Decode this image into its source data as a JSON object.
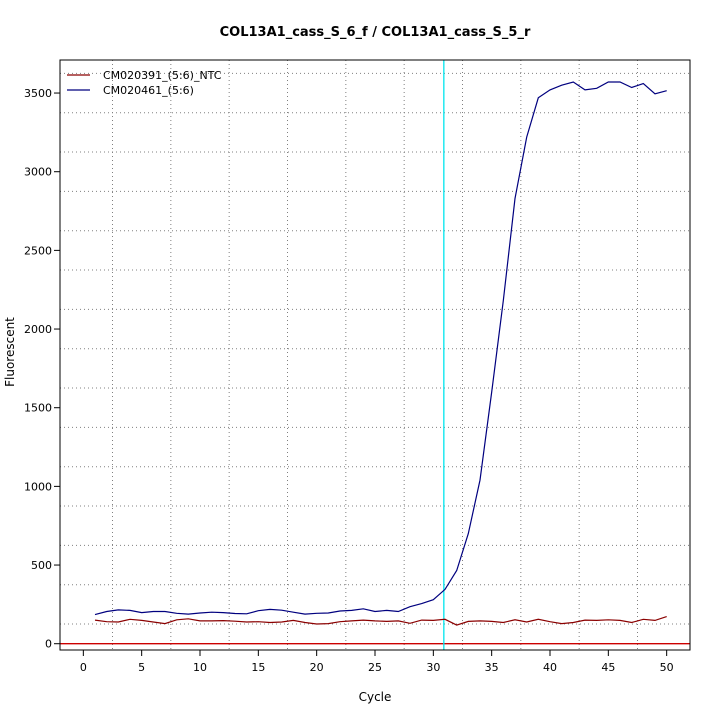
{
  "chart_data": {
    "type": "line",
    "title": "COL13A1_cass_S_6_f / COL13A1_cass_S_5_r",
    "xlabel": "Cycle",
    "ylabel": "Fluorescent",
    "xlim": [
      -2,
      52
    ],
    "ylim": [
      -40,
      3710
    ],
    "x_ticks": [
      "0",
      "5",
      "10",
      "15",
      "20",
      "25",
      "30",
      "35",
      "40",
      "45",
      "50"
    ],
    "y_ticks": [
      "0",
      "500",
      "1000",
      "1500",
      "2000",
      "2500",
      "3000",
      "3500"
    ],
    "grid": true,
    "legend_position": "top-left",
    "threshold_cycle": 30.9,
    "threshold_color": "#00e5ee",
    "baseline_color": "#cc0000",
    "series": [
      {
        "name": "CM020391_(5:6)_NTC",
        "color": "#8b0000",
        "x": [
          1,
          2,
          3,
          4,
          5,
          6,
          7,
          8,
          9,
          10,
          11,
          12,
          13,
          14,
          15,
          16,
          17,
          18,
          19,
          20,
          21,
          22,
          23,
          24,
          25,
          26,
          27,
          28,
          29,
          30,
          31,
          32,
          33,
          34,
          35,
          36,
          37,
          38,
          39,
          40,
          41,
          42,
          43,
          44,
          45,
          46,
          47,
          48,
          49,
          50
        ],
        "values": [
          150,
          140,
          138,
          155,
          148,
          138,
          128,
          152,
          158,
          145,
          145,
          147,
          143,
          138,
          140,
          135,
          138,
          148,
          135,
          125,
          128,
          140,
          145,
          150,
          145,
          142,
          145,
          130,
          150,
          148,
          155,
          118,
          142,
          145,
          142,
          135,
          152,
          138,
          155,
          140,
          128,
          135,
          150,
          148,
          152,
          148,
          135,
          155,
          148,
          172
        ]
      },
      {
        "name": "CM020461_(5:6)",
        "color": "#00007f",
        "x": [
          1,
          2,
          3,
          4,
          5,
          6,
          7,
          8,
          9,
          10,
          11,
          12,
          13,
          14,
          15,
          16,
          17,
          18,
          19,
          20,
          21,
          22,
          23,
          24,
          25,
          26,
          27,
          28,
          29,
          30,
          31,
          32,
          33,
          34,
          35,
          36,
          37,
          38,
          39,
          40,
          41,
          42,
          43,
          44,
          45,
          46,
          47,
          48,
          49,
          50
        ],
        "values": [
          185,
          205,
          215,
          212,
          198,
          205,
          205,
          193,
          188,
          195,
          200,
          198,
          192,
          190,
          210,
          218,
          213,
          200,
          188,
          193,
          195,
          208,
          212,
          222,
          205,
          212,
          205,
          235,
          255,
          280,
          345,
          465,
          700,
          1040,
          1600,
          2180,
          2830,
          3220,
          3470,
          3520,
          3550,
          3570,
          3520,
          3530,
          3570,
          3570,
          3535,
          3560,
          3495,
          3515
        ]
      }
    ]
  }
}
